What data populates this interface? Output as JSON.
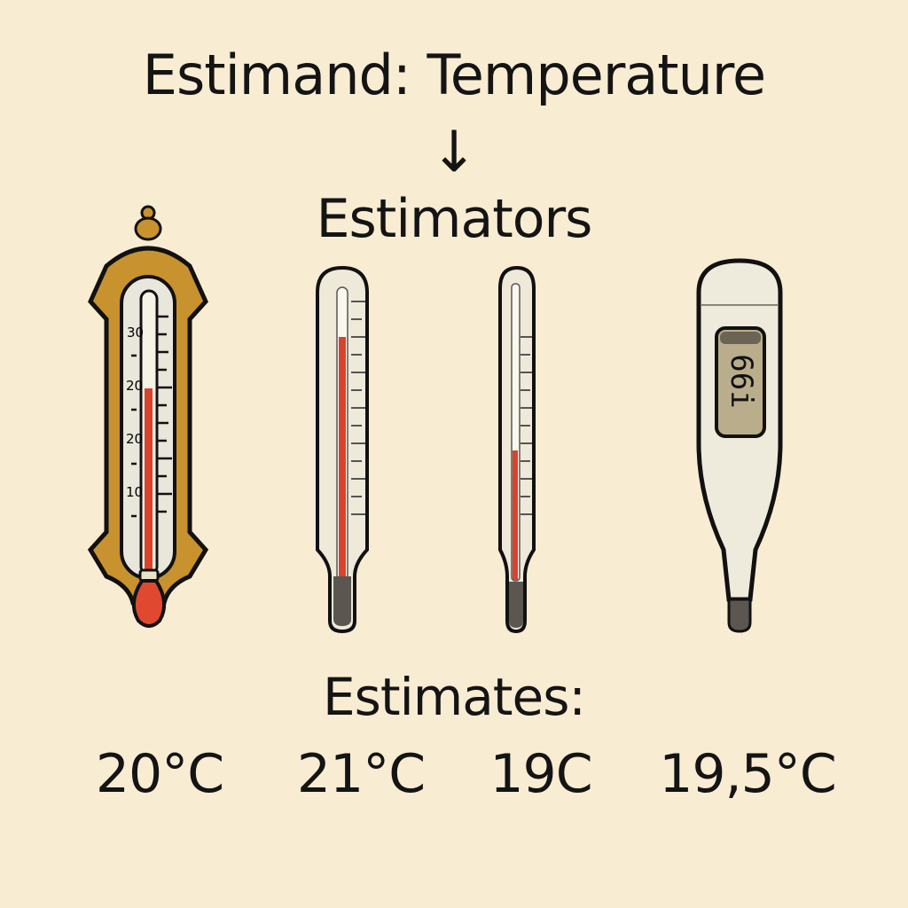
{
  "title": "Estimand: Temperature",
  "arrow": "↓",
  "subtitle": "Estimators",
  "estimates_label": "Estimates:",
  "estimates": [
    "20°C",
    "21°C",
    "19C",
    "19,5°C"
  ],
  "ornate_scale_labels": [
    "30",
    "20",
    "20",
    "10"
  ],
  "digital_display": "66i",
  "colors": {
    "background": "#f8ecd3",
    "mercury": "#d9432c",
    "frame": "#c8922e",
    "display": "#b9ad8c"
  }
}
